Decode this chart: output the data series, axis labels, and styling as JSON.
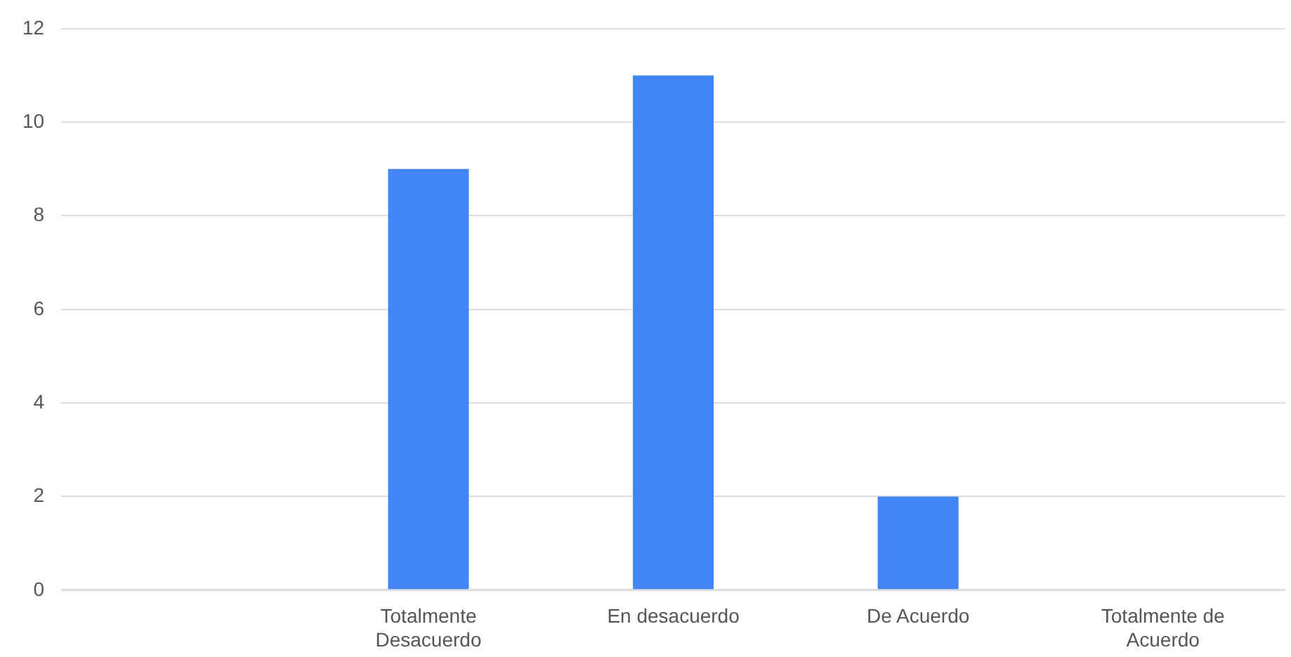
{
  "chart_data": {
    "type": "bar",
    "categories": [
      null,
      "Totalmente Desacuerdo",
      "En desacuerdo",
      "De Acuerdo",
      "Totalmente de Acuerdo"
    ],
    "values": [
      0,
      9,
      11,
      2,
      0
    ],
    "color": "#4285f4",
    "ylim": [
      0,
      12
    ],
    "yticks": [
      0,
      2,
      4,
      6,
      8,
      10,
      12
    ],
    "grid": "y"
  }
}
